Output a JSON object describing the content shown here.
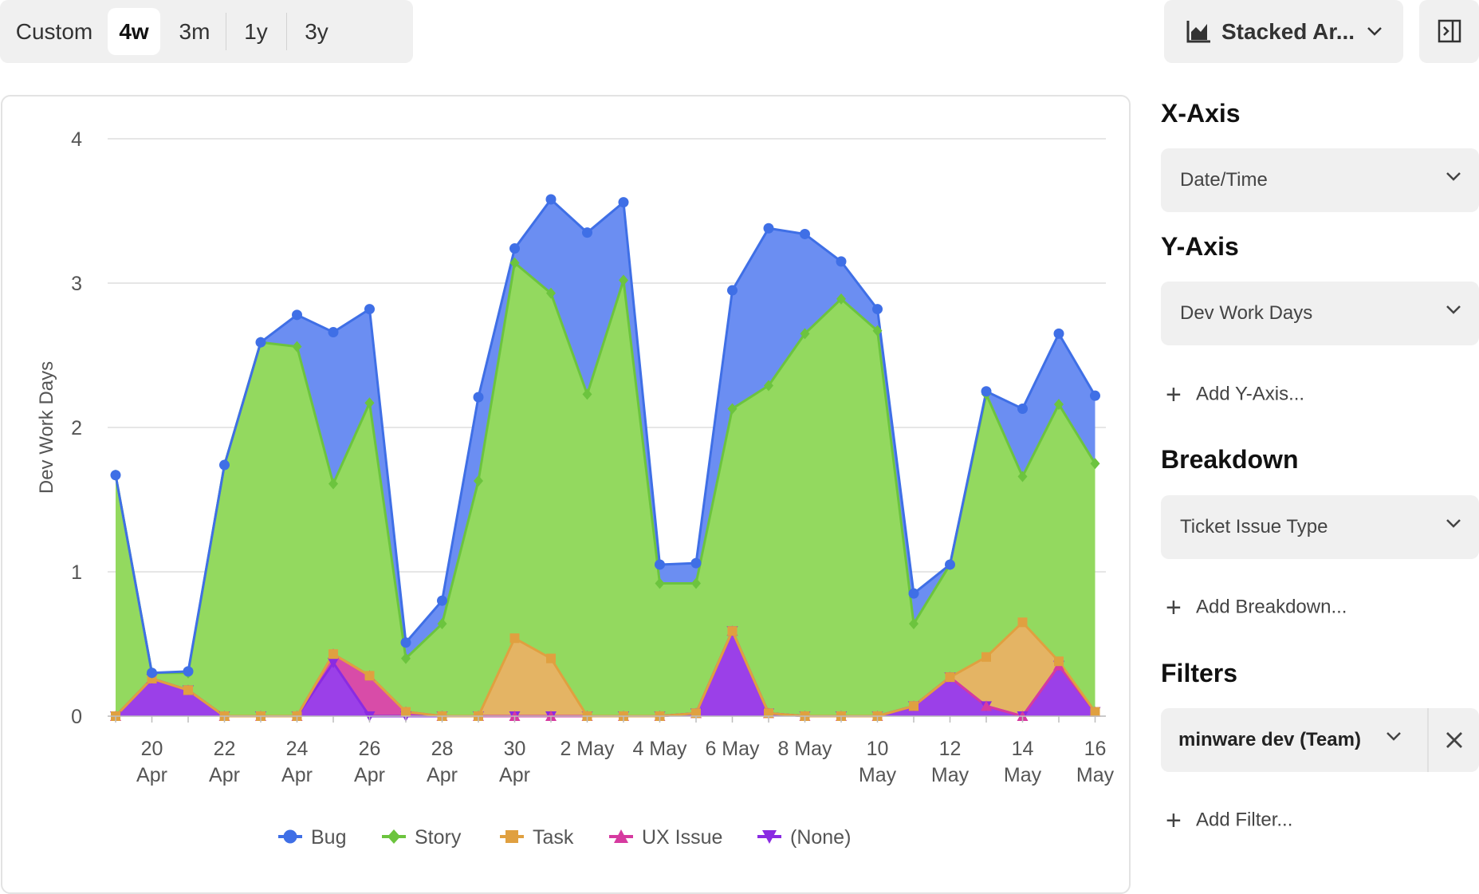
{
  "toolbar": {
    "ranges": [
      {
        "label": "Custom",
        "active": false
      },
      {
        "label": "4w",
        "active": true
      },
      {
        "label": "3m",
        "active": false
      },
      {
        "label": "1y",
        "active": false
      },
      {
        "label": "3y",
        "active": false
      }
    ],
    "chart_type_label": "Stacked Ar...",
    "chart_type_icon": "area-chart-icon",
    "panel_toggle_icon": "panel-toggle-icon"
  },
  "sidebar": {
    "x_axis_title": "X-Axis",
    "x_axis_value": "Date/Time",
    "y_axis_title": "Y-Axis",
    "y_axis_value": "Dev Work Days",
    "add_y_axis": "Add Y-Axis...",
    "breakdown_title": "Breakdown",
    "breakdown_value": "Ticket Issue Type",
    "add_breakdown": "Add Breakdown...",
    "filters_title": "Filters",
    "filter_value": "minware dev (Team)",
    "add_filter": "Add Filter..."
  },
  "chart_data": {
    "type": "area",
    "stacked": true,
    "ylabel": "Dev Work Days",
    "ylim": [
      0,
      4
    ],
    "yticks": [
      0,
      1,
      2,
      3,
      4
    ],
    "grid": true,
    "legend_position": "bottom",
    "x": [
      "19 Apr",
      "20 Apr",
      "21 Apr",
      "22 Apr",
      "23 Apr",
      "24 Apr",
      "25 Apr",
      "26 Apr",
      "27 Apr",
      "28 Apr",
      "29 Apr",
      "30 Apr",
      "1 May",
      "2 May",
      "3 May",
      "4 May",
      "5 May",
      "6 May",
      "7 May",
      "8 May",
      "9 May",
      "10 May",
      "11 May",
      "12 May",
      "13 May",
      "14 May",
      "15 May",
      "16 May"
    ],
    "xticks": [
      {
        "index": 1,
        "lines": [
          "20",
          "Apr"
        ]
      },
      {
        "index": 3,
        "lines": [
          "22",
          "Apr"
        ]
      },
      {
        "index": 5,
        "lines": [
          "24",
          "Apr"
        ]
      },
      {
        "index": 7,
        "lines": [
          "26",
          "Apr"
        ]
      },
      {
        "index": 9,
        "lines": [
          "28",
          "Apr"
        ]
      },
      {
        "index": 11,
        "lines": [
          "30",
          "Apr"
        ]
      },
      {
        "index": 13,
        "lines": [
          "2 May"
        ]
      },
      {
        "index": 15,
        "lines": [
          "4 May"
        ]
      },
      {
        "index": 17,
        "lines": [
          "6 May"
        ]
      },
      {
        "index": 19,
        "lines": [
          "8 May"
        ]
      },
      {
        "index": 21,
        "lines": [
          "10",
          "May"
        ]
      },
      {
        "index": 23,
        "lines": [
          "12",
          "May"
        ]
      },
      {
        "index": 25,
        "lines": [
          "14",
          "May"
        ]
      },
      {
        "index": 27,
        "lines": [
          "16",
          "May"
        ]
      }
    ],
    "series": [
      {
        "name": "(None)",
        "color": "#8a2be2",
        "fill": "#9b40e8",
        "marker": "triangle-down",
        "values": [
          0,
          0.26,
          0.18,
          0,
          0,
          0,
          0.37,
          0,
          0,
          0,
          0,
          0,
          0,
          0,
          0,
          0,
          0.02,
          0.59,
          0.02,
          0,
          0,
          0,
          0.07,
          0.27,
          0.07,
          0,
          0.35,
          0.03
        ]
      },
      {
        "name": "UX Issue",
        "color": "#d63aa0",
        "fill": "#d84ca8",
        "marker": "triangle",
        "values": [
          0,
          0,
          0,
          0,
          0,
          0,
          0.06,
          0.28,
          0.03,
          0,
          0,
          0,
          0,
          0,
          0,
          0,
          0,
          0,
          0,
          0,
          0,
          0,
          0,
          0,
          0,
          0,
          0,
          0
        ]
      },
      {
        "name": "Task",
        "color": "#e0a040",
        "fill": "#e4b464",
        "marker": "square",
        "values": [
          0,
          0,
          0,
          0,
          0,
          0,
          0,
          0,
          0,
          0,
          0,
          0.54,
          0.4,
          0,
          0,
          0,
          0,
          0,
          0,
          0,
          0,
          0,
          0,
          0,
          0.34,
          0.65,
          0.03,
          0
        ]
      },
      {
        "name": "Story",
        "color": "#6cc43e",
        "fill": "#93d95f",
        "marker": "diamond",
        "values": [
          1.67,
          0.04,
          0.12,
          1.74,
          2.59,
          2.56,
          1.18,
          1.89,
          0.37,
          0.64,
          1.63,
          2.6,
          2.53,
          2.23,
          3.02,
          0.92,
          0.9,
          1.54,
          2.27,
          2.65,
          2.89,
          2.67,
          0.57,
          0.78,
          1.82,
          1.01,
          1.78,
          1.72
        ]
      },
      {
        "name": "Bug",
        "color": "#3f6fe6",
        "fill": "#6b8ef2",
        "marker": "circle",
        "values": [
          0,
          0,
          0.01,
          0,
          0,
          0.22,
          1.05,
          0.65,
          0.11,
          0.16,
          0.58,
          0.1,
          0.65,
          1.12,
          0.54,
          0.13,
          0.14,
          0.82,
          1.09,
          0.69,
          0.26,
          0.15,
          0.21,
          0.0,
          0.02,
          0.47,
          0.49,
          0.47
        ]
      }
    ],
    "legend_order": [
      "Bug",
      "Story",
      "Task",
      "UX Issue",
      "(None)"
    ]
  }
}
